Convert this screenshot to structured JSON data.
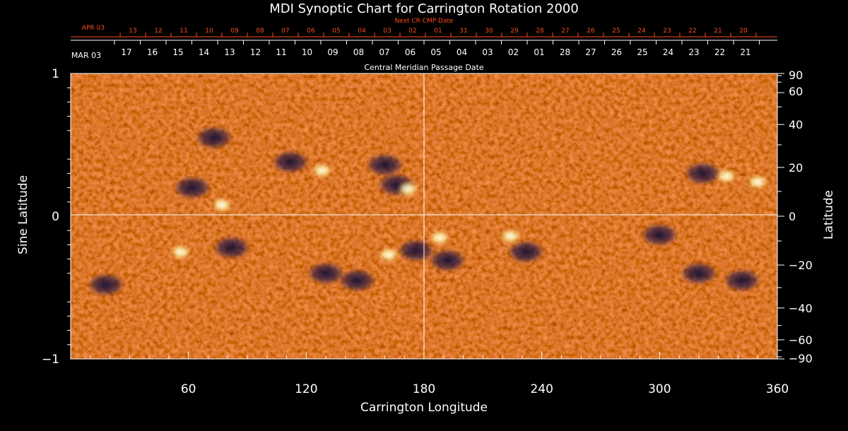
{
  "chart_data": {
    "type": "heatmap",
    "title": "MDI Synoptic Chart for Carrington Rotation 2000",
    "xlabel": "Carrington Longitude",
    "ylabel_left": "Sine Latitude",
    "ylabel_right": "Latitude",
    "top_label": "Central Meridian Passage Date",
    "top_red_label": "Next CR CMP Date",
    "xlim": [
      0,
      360
    ],
    "ylim": [
      -1,
      1
    ],
    "x_ticks": [
      "60",
      "120",
      "180",
      "240",
      "300",
      "360"
    ],
    "x_tick_values": [
      60,
      120,
      180,
      240,
      300,
      360
    ],
    "y_left_ticks": [
      "1",
      "0",
      "−1"
    ],
    "y_left_tick_values": [
      1,
      0,
      -1
    ],
    "y_right_ticks": [
      "90",
      "60",
      "40",
      "20",
      "0",
      "−20",
      "−40",
      "−60",
      "−90"
    ],
    "y_right_tick_values": [
      90,
      60,
      40,
      20,
      0,
      -20,
      -40,
      -60,
      -90
    ],
    "cmp_month_label": "MAR 03",
    "cmp_dates": [
      "17",
      "16",
      "15",
      "14",
      "13",
      "12",
      "11",
      "10",
      "09",
      "08",
      "07",
      "06",
      "05",
      "04",
      "03",
      "02",
      "01",
      "28",
      "27",
      "26",
      "25",
      "24",
      "23",
      "22",
      "21"
    ],
    "next_month_label": "APR 03",
    "next_dates": [
      "13",
      "12",
      "11",
      "10",
      "09",
      "08",
      "07",
      "06",
      "05",
      "04",
      "03",
      "02",
      "01",
      "31",
      "30",
      "29",
      "28",
      "27",
      "26",
      "25",
      "24",
      "23",
      "22",
      "21",
      "20"
    ],
    "grid": "lines at longitude 180 and sine latitude 0",
    "colors": {
      "background": "#000000",
      "field": "#f04a12",
      "positive_polarity": "#fff4c0",
      "negative_polarity": "#1a1440",
      "red_axis": "#ff4a1c",
      "axis": "#ffffff"
    },
    "active_regions": [
      {
        "lon": 62,
        "sinlat": 0.2,
        "polarity": "negative"
      },
      {
        "lon": 77,
        "sinlat": 0.08,
        "polarity": "positive"
      },
      {
        "lon": 73,
        "sinlat": 0.55,
        "polarity": "negative"
      },
      {
        "lon": 112,
        "sinlat": 0.38,
        "polarity": "negative"
      },
      {
        "lon": 128,
        "sinlat": 0.32,
        "polarity": "positive"
      },
      {
        "lon": 160,
        "sinlat": 0.36,
        "polarity": "negative"
      },
      {
        "lon": 166,
        "sinlat": 0.22,
        "polarity": "negative"
      },
      {
        "lon": 172,
        "sinlat": 0.19,
        "polarity": "positive"
      },
      {
        "lon": 56,
        "sinlat": -0.25,
        "polarity": "positive"
      },
      {
        "lon": 82,
        "sinlat": -0.22,
        "polarity": "negative"
      },
      {
        "lon": 130,
        "sinlat": -0.4,
        "polarity": "negative"
      },
      {
        "lon": 146,
        "sinlat": -0.45,
        "polarity": "negative"
      },
      {
        "lon": 162,
        "sinlat": -0.27,
        "polarity": "positive"
      },
      {
        "lon": 176,
        "sinlat": -0.24,
        "polarity": "negative"
      },
      {
        "lon": 188,
        "sinlat": -0.15,
        "polarity": "positive"
      },
      {
        "lon": 192,
        "sinlat": -0.31,
        "polarity": "negative"
      },
      {
        "lon": 224,
        "sinlat": -0.14,
        "polarity": "positive"
      },
      {
        "lon": 232,
        "sinlat": -0.25,
        "polarity": "negative"
      },
      {
        "lon": 300,
        "sinlat": -0.13,
        "polarity": "negative"
      },
      {
        "lon": 322,
        "sinlat": 0.3,
        "polarity": "negative"
      },
      {
        "lon": 334,
        "sinlat": 0.28,
        "polarity": "positive"
      },
      {
        "lon": 350,
        "sinlat": 0.24,
        "polarity": "positive"
      },
      {
        "lon": 320,
        "sinlat": -0.4,
        "polarity": "negative"
      },
      {
        "lon": 342,
        "sinlat": -0.45,
        "polarity": "negative"
      },
      {
        "lon": 18,
        "sinlat": -0.48,
        "polarity": "negative"
      }
    ]
  }
}
